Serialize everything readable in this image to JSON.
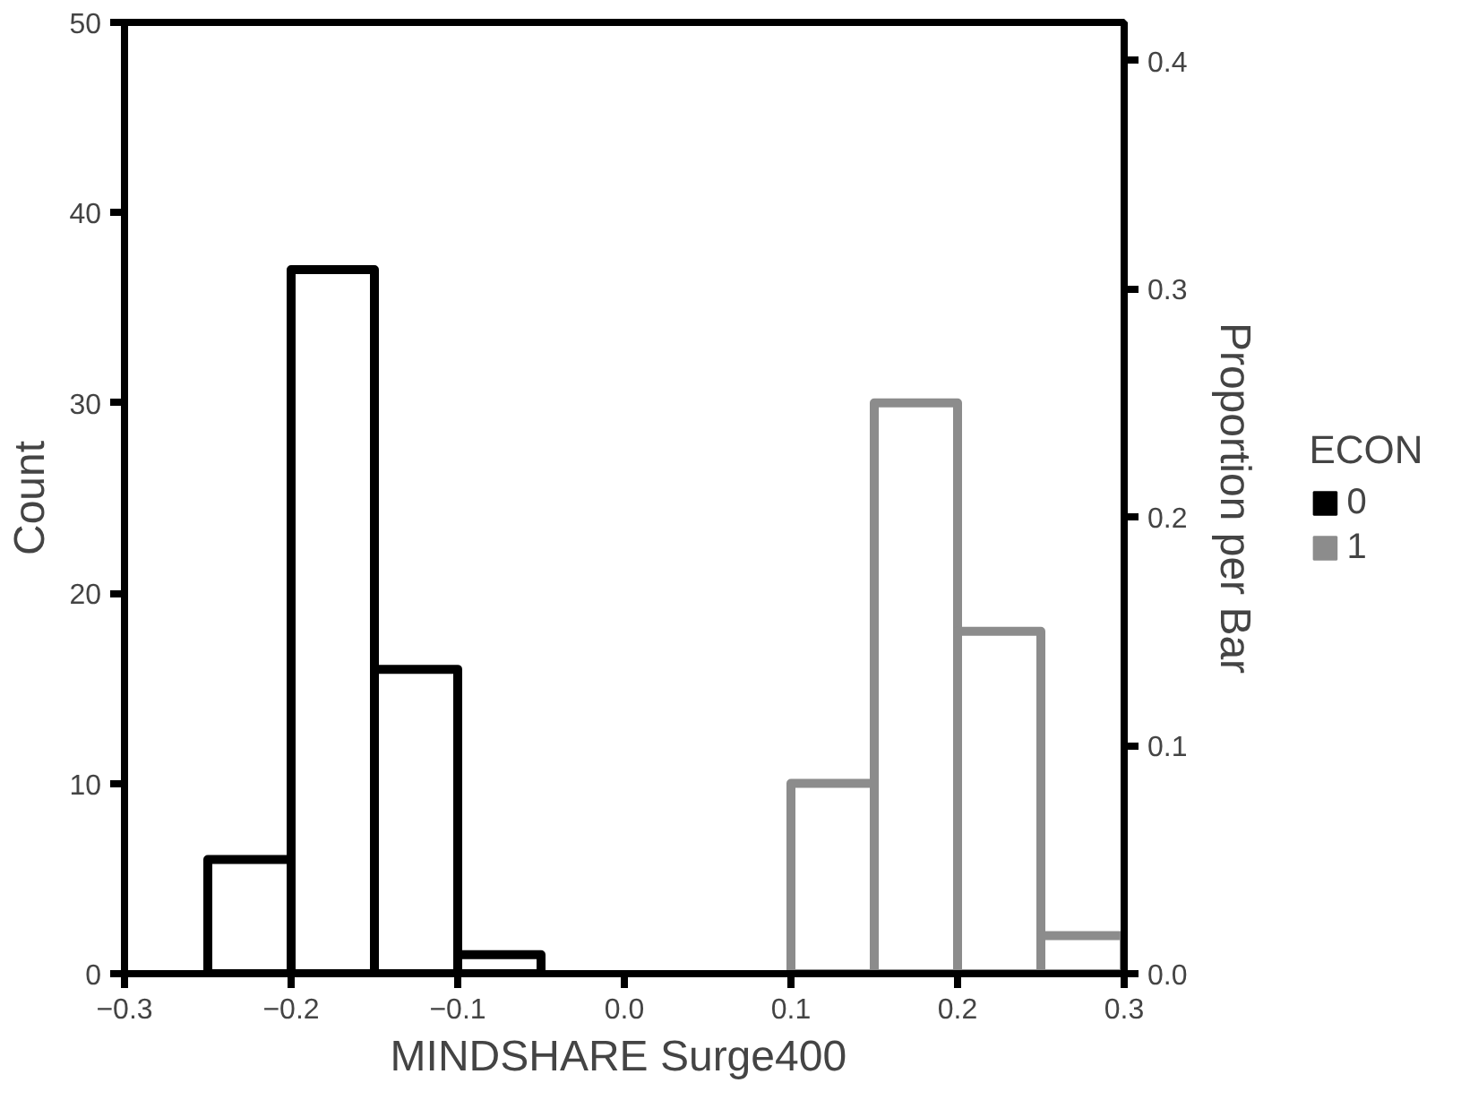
{
  "chart_data": {
    "type": "histogram",
    "xlabel": "MINDSHARE  Surge400",
    "ylabel": "Count",
    "y2label": "Proportion per Bar",
    "legend_title": "ECON",
    "legend": "right",
    "bins": [
      -0.3,
      -0.25,
      -0.2,
      -0.15,
      -0.1,
      -0.05,
      0.0,
      0.05,
      0.1,
      0.15,
      0.2,
      0.25,
      0.3
    ],
    "series": [
      {
        "name": "0",
        "color": "#000000",
        "values": [
          0,
          6,
          37,
          16,
          1,
          0,
          0,
          0,
          0,
          0,
          0,
          0
        ]
      },
      {
        "name": "1",
        "color": "#8c8c8c",
        "values": [
          0,
          0,
          0,
          0,
          0,
          0,
          0,
          0,
          10,
          30,
          18,
          2
        ]
      }
    ],
    "xlim": [
      -0.3,
      0.3
    ],
    "xticks": [
      -0.3,
      -0.2,
      -0.1,
      {
        "value": 0,
        "label": "0.0"
      },
      0.1,
      0.2,
      0.3
    ],
    "ylim": [
      0,
      50
    ],
    "yticks": [
      0,
      10,
      20,
      30,
      40,
      50
    ],
    "y2lim": [
      0,
      0.4167
    ],
    "y2ticks": [
      {
        "value": 0,
        "label": "0.0"
      },
      0.1,
      0.2,
      0.3,
      0.4
    ],
    "grid": false
  }
}
